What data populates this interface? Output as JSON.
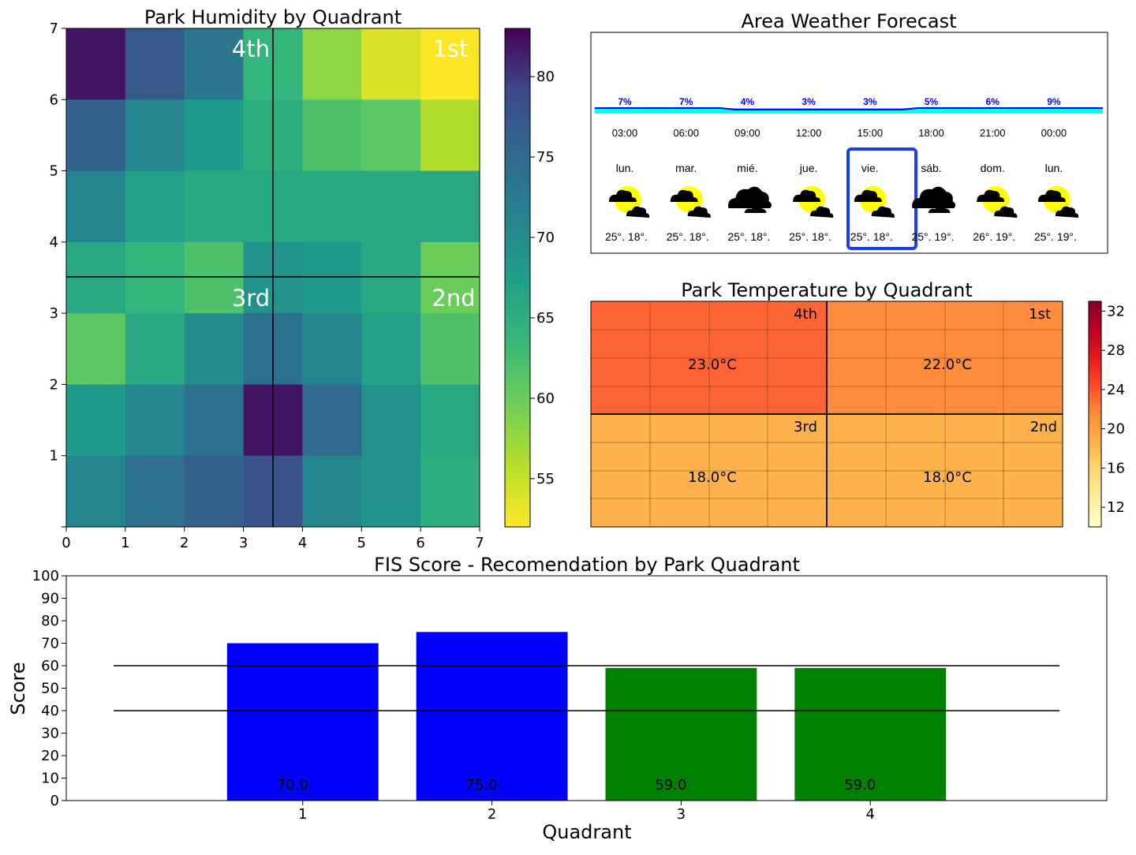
{
  "humidity": {
    "title": "Park Humidity by Quadrant",
    "xticks": [
      "0",
      "1",
      "2",
      "3",
      "4",
      "5",
      "6",
      "7"
    ],
    "yticks": [
      "1",
      "2",
      "3",
      "4",
      "5",
      "6",
      "7"
    ],
    "grid": [
      [
        82,
        77,
        73,
        64,
        58,
        54,
        52
      ],
      [
        76,
        71,
        68,
        65,
        62,
        61,
        56
      ],
      [
        71,
        67,
        66,
        66,
        66,
        66,
        66
      ],
      [
        66,
        64,
        62,
        69,
        68,
        66,
        60
      ],
      [
        66,
        64,
        62,
        69,
        68,
        66,
        60
      ],
      [
        61,
        66,
        70,
        74,
        71,
        67,
        62
      ],
      [
        68,
        71,
        74,
        82,
        75,
        69,
        66
      ],
      [
        71,
        74,
        76,
        78,
        71,
        69,
        65
      ]
    ],
    "row_y": [
      [
        6,
        7
      ],
      [
        5,
        6
      ],
      [
        4,
        5
      ],
      [
        3.5,
        4
      ],
      [
        3,
        3.5
      ],
      [
        2,
        3
      ],
      [
        1,
        2
      ],
      [
        0,
        1
      ]
    ],
    "divider_x": 3.5,
    "divider_y": 3.5,
    "quadrant_labels": [
      "4th",
      "1st",
      "3rd",
      "2nd"
    ],
    "colorbar": {
      "min": 52,
      "max": 83,
      "ticks": [
        "55",
        "60",
        "65",
        "70",
        "75",
        "80"
      ],
      "tick_values": [
        55,
        60,
        65,
        70,
        75,
        80
      ]
    }
  },
  "forecast": {
    "title": "Area Weather Forecast",
    "hours": [
      {
        "pct": "7%",
        "time": "03:00"
      },
      {
        "pct": "7%",
        "time": "06:00"
      },
      {
        "pct": "4%",
        "time": "09:00"
      },
      {
        "pct": "3%",
        "time": "12:00"
      },
      {
        "pct": "3%",
        "time": "15:00"
      },
      {
        "pct": "5%",
        "time": "18:00"
      },
      {
        "pct": "6%",
        "time": "21:00"
      },
      {
        "pct": "9%",
        "time": "00:00"
      }
    ],
    "days": [
      {
        "day": "lun.",
        "temps": "25°. 18°.",
        "icon": "sun-cloud-icon"
      },
      {
        "day": "mar.",
        "temps": "25°. 18°.",
        "icon": "sun-cloud-icon"
      },
      {
        "day": "mié.",
        "temps": "25°. 18°.",
        "icon": "cloud-icon"
      },
      {
        "day": "jue.",
        "temps": "25°. 18°.",
        "icon": "sun-cloud-icon"
      },
      {
        "day": "vie.",
        "temps": "25°. 18°.",
        "icon": "sun-cloud-icon"
      },
      {
        "day": "sáb.",
        "temps": "25°. 19°.",
        "icon": "cloud-icon"
      },
      {
        "day": "dom.",
        "temps": "26°. 19°.",
        "icon": "sun-cloud-icon"
      },
      {
        "day": "lun.",
        "temps": "25°. 19°.",
        "icon": "sun-cloud-icon"
      }
    ],
    "selected_index": 4,
    "colors": {
      "bar": "#00ffff",
      "line": "#0000ff",
      "selected": "#1a3cff"
    }
  },
  "temperature": {
    "title": "Park Temperature by Quadrant",
    "quadrants": [
      {
        "label": "4th",
        "value": "23.0°C",
        "color": "#fd6433"
      },
      {
        "label": "1st",
        "value": "22.0°C",
        "color": "#fd8d3c"
      },
      {
        "label": "3rd",
        "value": "18.0°C",
        "color": "#feb24c"
      },
      {
        "label": "2nd",
        "value": "18.0°C",
        "color": "#feb24c"
      }
    ],
    "colorbar": {
      "min": 10,
      "max": 33,
      "ticks": [
        "12",
        "16",
        "20",
        "24",
        "28",
        "32"
      ],
      "tick_values": [
        12,
        16,
        20,
        24,
        28,
        32
      ]
    }
  },
  "chart_data": {
    "type": "bar",
    "title": "FIS Score - Recomendation by Park Quadrant",
    "xlabel": "Quadrant",
    "ylabel": "Score",
    "categories": [
      "1",
      "2",
      "3",
      "4"
    ],
    "values": [
      70.0,
      75.0,
      59.0,
      59.0
    ],
    "value_labels": [
      "70.0",
      "75.0",
      "59.0",
      "59.0"
    ],
    "colors": [
      "#0000ff",
      "#0000ff",
      "#008000",
      "#008000"
    ],
    "ylim": [
      0,
      100
    ],
    "xlim": [
      -0.25,
      5.25
    ],
    "bar_positions": [
      1,
      2,
      3,
      4
    ],
    "bar_width": 0.8,
    "yticks": [
      "0",
      "10",
      "20",
      "30",
      "40",
      "50",
      "60",
      "70",
      "80",
      "90",
      "100"
    ],
    "threshold_lines": [
      60,
      40
    ],
    "threshold_xrange": [
      0,
      5
    ],
    "grid": false
  }
}
